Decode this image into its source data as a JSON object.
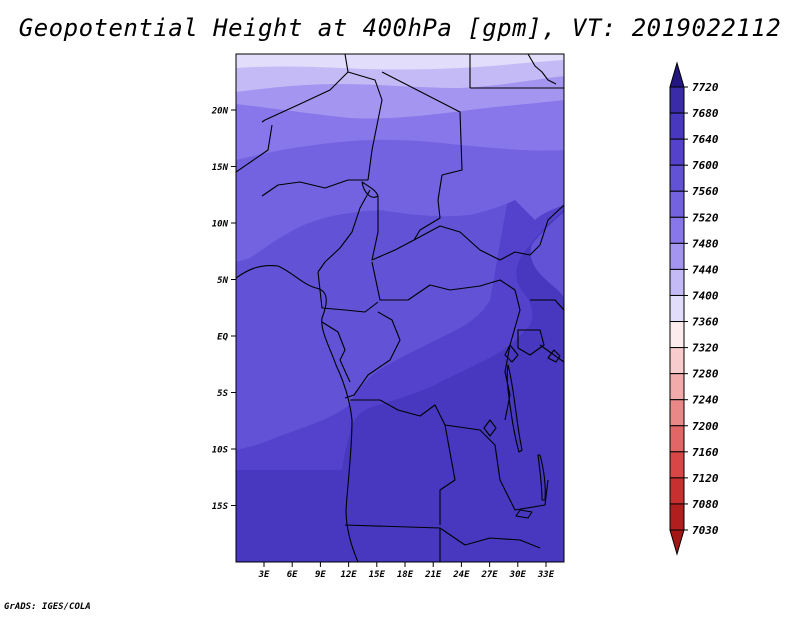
{
  "title": "Geopotential Height at 400hPa [gpm], VT: 2019022112",
  "credit": "GrADS: IGES/COLA",
  "axes": {
    "lat_labels": [
      "20N",
      "15N",
      "10N",
      "5N",
      "EQ",
      "5S",
      "10S",
      "15S"
    ],
    "lon_labels": [
      "3E",
      "6E",
      "9E",
      "12E",
      "15E",
      "18E",
      "21E",
      "24E",
      "27E",
      "30E",
      "33E"
    ]
  },
  "colorbar": {
    "labels": [
      "7720",
      "7680",
      "7640",
      "7600",
      "7560",
      "7520",
      "7480",
      "7440",
      "7400",
      "7360",
      "7320",
      "7280",
      "7240",
      "7200",
      "7160",
      "7120",
      "7080",
      "7030"
    ],
    "colors": [
      "#2a1c92",
      "#3a2ca8",
      "#4838c0",
      "#5442cc",
      "#6252d6",
      "#7363e0",
      "#8877ea",
      "#a496f0",
      "#c4bbf6",
      "#e2ddfb",
      "#fdeced",
      "#f8cccc",
      "#f2aaaa",
      "#ea8888",
      "#e26666",
      "#d84646",
      "#c83030",
      "#b01e1e"
    ],
    "top_arrow_color": "#231680",
    "bottom_arrow_color": "#a31616"
  },
  "field_colors": {
    "band_7640_7680": "#4838c0",
    "band_7600_7640": "#5442cc",
    "band_7560_7600": "#6252d6",
    "band_7520_7560": "#7363e0",
    "band_7480_7520": "#8877ea",
    "band_7440_7480": "#a496f0",
    "band_7400_7440": "#c4bbf6",
    "band_7360_7400": "#e2ddfb"
  }
}
